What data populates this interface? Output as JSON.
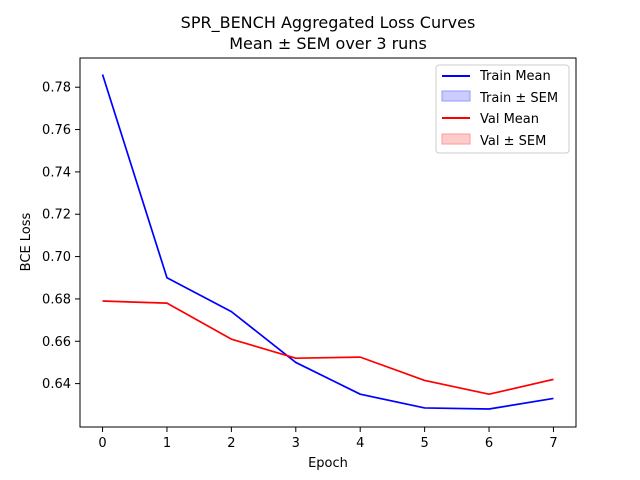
{
  "chart_data": {
    "type": "line",
    "title": "SPR_BENCH Aggregated Loss Curves",
    "subtitle": "Mean ± SEM over 3 runs",
    "xlabel": "Epoch",
    "ylabel": "BCE Loss",
    "xlim": [
      -0.35,
      7.35
    ],
    "ylim": [
      0.6195,
      0.7938
    ],
    "x_ticks": [
      0,
      1,
      2,
      3,
      4,
      5,
      6,
      7
    ],
    "y_ticks": [
      0.64,
      0.66,
      0.68,
      0.7,
      0.72,
      0.74,
      0.76,
      0.78
    ],
    "grid": false,
    "legend_position": "top-right",
    "x": [
      0,
      1,
      2,
      3,
      4,
      5,
      6,
      7
    ],
    "series": [
      {
        "name": "Train Mean",
        "band_name": "Train ± SEM",
        "color": "#0000ff",
        "band_color": "#9999ff",
        "values": [
          0.786,
          0.69,
          0.674,
          0.65,
          0.635,
          0.6285,
          0.628,
          0.633
        ],
        "sem": [
          0,
          0,
          0,
          0,
          0,
          0,
          0,
          0
        ]
      },
      {
        "name": "Val Mean",
        "band_name": "Val ± SEM",
        "color": "#ff0000",
        "band_color": "#ff9999",
        "values": [
          0.679,
          0.678,
          0.661,
          0.652,
          0.6525,
          0.6415,
          0.635,
          0.642
        ],
        "sem": [
          0,
          0,
          0,
          0,
          0,
          0,
          0,
          0
        ]
      }
    ]
  }
}
